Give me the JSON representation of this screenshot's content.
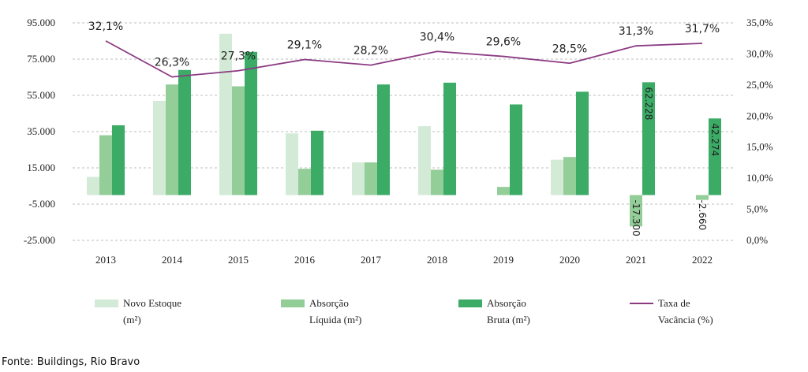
{
  "chart_data": {
    "type": "bar",
    "categories": [
      "2013",
      "2014",
      "2015",
      "2016",
      "2017",
      "2018",
      "2019",
      "2020",
      "2021",
      "2022"
    ],
    "series": [
      {
        "name": "Novo Estoque (m²)",
        "color": "#d3ead6",
        "values": [
          10000,
          52000,
          89000,
          34000,
          18000,
          38000,
          0,
          19500,
          0,
          0
        ]
      },
      {
        "name": "Absorção Líquida (m²)",
        "color": "#93cd98",
        "values": [
          33000,
          61000,
          60000,
          14500,
          18000,
          14000,
          4500,
          21000,
          -17300,
          -2660
        ]
      },
      {
        "name": "Absorção Bruta (m²)",
        "color": "#3bab66",
        "values": [
          38500,
          69000,
          79000,
          35500,
          61000,
          62000,
          50000,
          57000,
          62228,
          42274
        ]
      }
    ],
    "line_series": {
      "name": "Taxa de Vacância (%)",
      "color": "#8b3a82",
      "values": [
        32.1,
        26.3,
        27.3,
        29.1,
        28.2,
        30.4,
        29.6,
        28.5,
        31.3,
        31.7
      ]
    },
    "line_labels": [
      "32,1%",
      "26,3%",
      "27,3%",
      "29,1%",
      "28,2%",
      "30,4%",
      "29,6%",
      "28,5%",
      "31,3%",
      "31,7%"
    ],
    "bar_labels": [
      {
        "category": "2021",
        "series": 1,
        "text": "-17.300"
      },
      {
        "category": "2021",
        "series": 2,
        "text": "62.228"
      },
      {
        "category": "2022",
        "series": 1,
        "text": "-2.660"
      },
      {
        "category": "2022",
        "series": 2,
        "text": "42.274"
      }
    ],
    "y_left": {
      "min": -25000,
      "max": 95000,
      "ticks": [
        95000,
        75000,
        55000,
        35000,
        15000,
        -5000,
        -25000
      ],
      "tick_labels": [
        "95.000",
        "75.000",
        "55.000",
        "35.000",
        "15.000",
        "-5.000",
        "-25.000"
      ]
    },
    "y_right": {
      "min": 0,
      "max": 35,
      "ticks": [
        35,
        30,
        25,
        20,
        15,
        10,
        5,
        0
      ],
      "tick_labels": [
        "35,0%",
        "30,0%",
        "25,0%",
        "20,0%",
        "15,0%",
        "10,0%",
        "5,0%",
        "0,0%"
      ]
    },
    "grid": true,
    "legend_position": "bottom"
  },
  "legend": [
    {
      "kind": "box",
      "color": "#d3ead6",
      "line1": "Novo Estoque",
      "line2": "(m²)"
    },
    {
      "kind": "box",
      "color": "#93cd98",
      "line1": "Absorção",
      "line2": "Líquida (m²)"
    },
    {
      "kind": "box",
      "color": "#3bab66",
      "line1": "Absorção",
      "line2": "Bruta (m²)"
    },
    {
      "kind": "line",
      "color": "#8b3a82",
      "line1": "Taxa de",
      "line2": "Vacância (%)"
    }
  ],
  "source": "Fonte: Buildings, Rio Bravo"
}
